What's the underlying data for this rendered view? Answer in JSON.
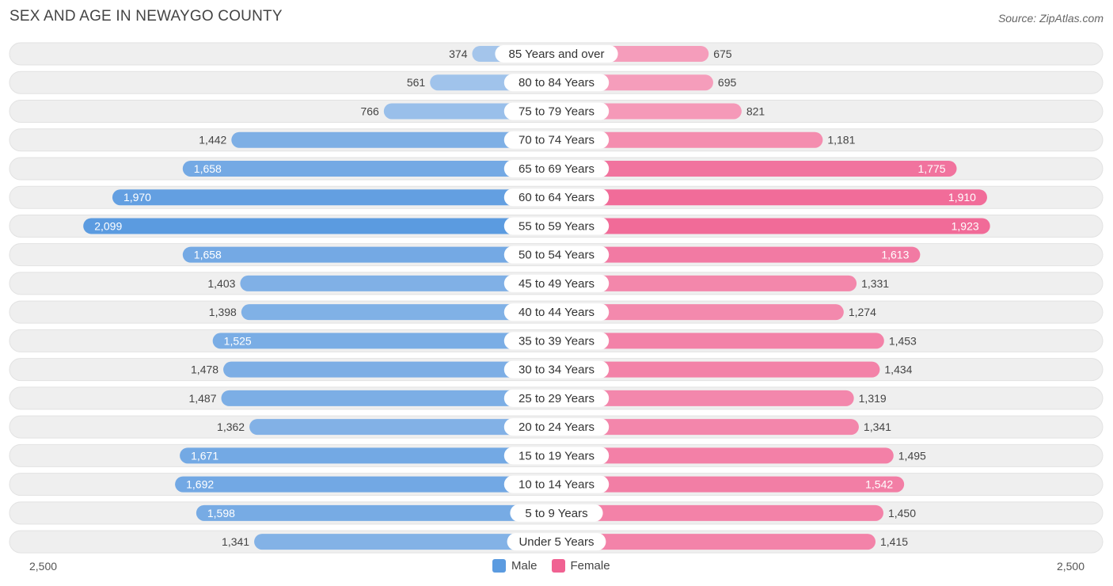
{
  "title": "SEX AND AGE IN NEWAYGO COUNTY",
  "source": "Source: ZipAtlas.com",
  "colors": {
    "male_dark": "#5b9be0",
    "male_light": "#a9c8ec",
    "female_dark": "#f06292",
    "female_light": "#f6a9c3",
    "row_bg": "#efefef",
    "label_bg": "#ffffff"
  },
  "chart_data": {
    "type": "bar",
    "orientation": "horizontal-diverging",
    "title": "SEX AND AGE IN NEWAYGO COUNTY",
    "categories": [
      "85 Years and over",
      "80 to 84 Years",
      "75 to 79 Years",
      "70 to 74 Years",
      "65 to 69 Years",
      "60 to 64 Years",
      "55 to 59 Years",
      "50 to 54 Years",
      "45 to 49 Years",
      "40 to 44 Years",
      "35 to 39 Years",
      "30 to 34 Years",
      "25 to 29 Years",
      "20 to 24 Years",
      "15 to 19 Years",
      "10 to 14 Years",
      "5 to 9 Years",
      "Under 5 Years"
    ],
    "series": [
      {
        "name": "Male",
        "values": [
          374,
          561,
          766,
          1442,
          1658,
          1970,
          2099,
          1658,
          1403,
          1398,
          1525,
          1478,
          1487,
          1362,
          1671,
          1692,
          1598,
          1341
        ],
        "labels": [
          "374",
          "561",
          "766",
          "1,442",
          "1,658",
          "1,970",
          "2,099",
          "1,658",
          "1,403",
          "1,398",
          "1,525",
          "1,478",
          "1,487",
          "1,362",
          "1,671",
          "1,692",
          "1,598",
          "1,341"
        ]
      },
      {
        "name": "Female",
        "values": [
          675,
          695,
          821,
          1181,
          1775,
          1910,
          1923,
          1613,
          1331,
          1274,
          1453,
          1434,
          1319,
          1341,
          1495,
          1542,
          1450,
          1415
        ],
        "labels": [
          "675",
          "695",
          "821",
          "1,181",
          "1,775",
          "1,910",
          "1,923",
          "1,613",
          "1,331",
          "1,274",
          "1,453",
          "1,434",
          "1,319",
          "1,341",
          "1,495",
          "1,542",
          "1,450",
          "1,415"
        ]
      }
    ],
    "xlim": [
      -2500,
      2500
    ],
    "axis_labels": {
      "left": "2,500",
      "right": "2,500"
    },
    "legend": [
      "Male",
      "Female"
    ],
    "legend_position": "bottom-center"
  }
}
